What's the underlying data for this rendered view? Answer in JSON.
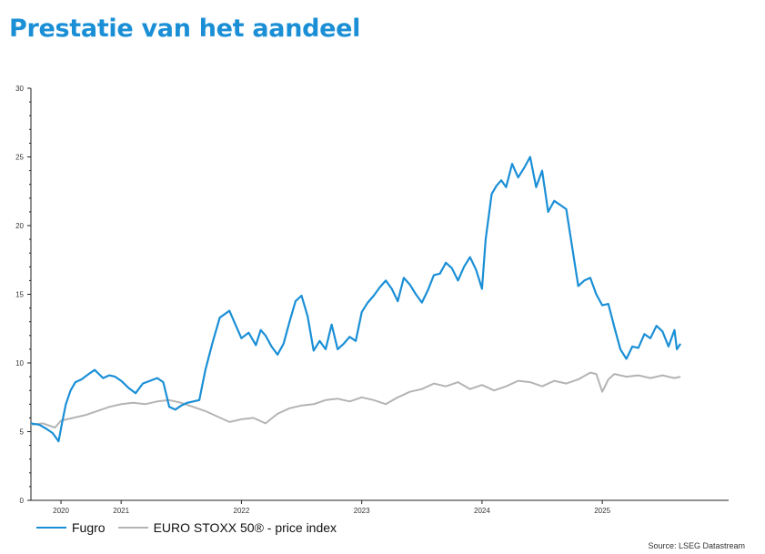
{
  "page": {
    "title": "Prestatie van het aandeel"
  },
  "source": "Source: LSEG Datastream",
  "chart_data": {
    "type": "line",
    "title": "Prestatie van het aandeel",
    "xlabel": "",
    "ylabel": "",
    "xlim": [
      2019.85,
      2025.65
    ],
    "ylim": [
      0,
      30
    ],
    "yticks": [
      0,
      5,
      10,
      15,
      20,
      25,
      30
    ],
    "xticks": [
      {
        "label": "2020",
        "pos": 2020.1
      },
      {
        "label": "2021",
        "pos": 2020.6
      },
      {
        "label": "2022",
        "pos": 2021.6
      },
      {
        "label": "2023",
        "pos": 2022.6
      },
      {
        "label": "2024",
        "pos": 2023.6
      },
      {
        "label": "2025",
        "pos": 2024.6
      }
    ],
    "year_labels": [
      {
        "label": "2020",
        "pos": 2020.1
      },
      {
        "label": "2021",
        "pos": 2020.6
      },
      {
        "label": "2022",
        "pos": 2021.6
      },
      {
        "label": "2023",
        "pos": 2022.6
      },
      {
        "label": "2024",
        "pos": 2023.6
      },
      {
        "label": "2025",
        "pos": 2024.6
      }
    ],
    "grid": false,
    "legend_position": "bottom-left",
    "series": [
      {
        "name": "Fugro",
        "color": "#1a8fd6",
        "x": [
          2019.85,
          2019.92,
          2019.98,
          2020.03,
          2020.08,
          2020.11,
          2020.14,
          2020.18,
          2020.22,
          2020.27,
          2020.33,
          2020.38,
          2020.45,
          2020.5,
          2020.55,
          2020.6,
          2020.66,
          2020.72,
          2020.78,
          2020.84,
          2020.9,
          2020.95,
          2021.0,
          2021.05,
          2021.1,
          2021.15,
          2021.2,
          2021.25,
          2021.3,
          2021.36,
          2021.42,
          2021.5,
          2021.56,
          2021.6,
          2021.66,
          2021.72,
          2021.76,
          2021.8,
          2021.85,
          2021.9,
          2021.95,
          2022.0,
          2022.05,
          2022.1,
          2022.15,
          2022.2,
          2022.25,
          2022.3,
          2022.35,
          2022.4,
          2022.45,
          2022.5,
          2022.55,
          2022.6,
          2022.65,
          2022.7,
          2022.75,
          2022.8,
          2022.85,
          2022.9,
          2022.95,
          2023.0,
          2023.05,
          2023.1,
          2023.15,
          2023.2,
          2023.25,
          2023.3,
          2023.35,
          2023.4,
          2023.45,
          2023.5,
          2023.55,
          2023.6,
          2023.63,
          2023.68,
          2023.72,
          2023.76,
          2023.8,
          2023.85,
          2023.9,
          2023.95,
          2024.0,
          2024.05,
          2024.1,
          2024.15,
          2024.2,
          2024.3,
          2024.4,
          2024.45,
          2024.5,
          2024.55,
          2024.6,
          2024.65,
          2024.7,
          2024.75,
          2024.8,
          2024.85,
          2024.9,
          2024.95,
          2025.0,
          2025.05,
          2025.1,
          2025.15,
          2025.2,
          2025.22,
          2025.25
        ],
        "values": [
          5.6,
          5.5,
          5.2,
          4.9,
          4.3,
          5.7,
          7.0,
          8.0,
          8.6,
          8.8,
          9.2,
          9.5,
          8.9,
          9.1,
          9.0,
          8.7,
          8.2,
          7.8,
          8.5,
          8.7,
          8.9,
          8.6,
          6.8,
          6.6,
          6.9,
          7.1,
          7.2,
          7.3,
          9.5,
          11.5,
          13.3,
          13.8,
          12.6,
          11.8,
          12.2,
          11.3,
          12.4,
          12.0,
          11.2,
          10.6,
          11.4,
          13.0,
          14.5,
          14.9,
          13.4,
          10.9,
          11.6,
          11.0,
          12.8,
          11.0,
          11.4,
          11.9,
          11.6,
          13.7,
          14.4,
          14.9,
          15.5,
          16.0,
          15.4,
          14.5,
          16.2,
          15.7,
          15.0,
          14.4,
          15.3,
          16.4,
          16.5,
          17.3,
          16.9,
          16.0,
          17.0,
          17.7,
          16.8,
          15.4,
          19.0,
          22.3,
          22.9,
          23.3,
          22.8,
          24.5,
          23.5,
          24.2,
          25.0,
          22.8,
          24.0,
          21.0,
          21.8,
          21.2,
          15.6,
          16.0,
          16.2,
          15.0,
          14.2,
          14.3,
          12.6,
          11.0,
          10.3,
          11.2,
          11.1,
          12.1,
          11.8,
          12.7,
          12.3,
          11.2,
          12.4,
          11.0,
          11.4
        ]
      },
      {
        "name": "EURO STOXX 50® - price index",
        "color": "#b4b4b4",
        "x": [
          2019.85,
          2019.95,
          2020.05,
          2020.1,
          2020.2,
          2020.3,
          2020.4,
          2020.5,
          2020.6,
          2020.7,
          2020.8,
          2020.9,
          2021.0,
          2021.1,
          2021.2,
          2021.3,
          2021.4,
          2021.5,
          2021.6,
          2021.7,
          2021.8,
          2021.9,
          2022.0,
          2022.1,
          2022.2,
          2022.3,
          2022.4,
          2022.5,
          2022.6,
          2022.7,
          2022.8,
          2022.9,
          2023.0,
          2023.1,
          2023.2,
          2023.3,
          2023.4,
          2023.5,
          2023.6,
          2023.7,
          2023.8,
          2023.9,
          2024.0,
          2024.1,
          2024.2,
          2024.3,
          2024.4,
          2024.5,
          2024.55,
          2024.6,
          2024.65,
          2024.7,
          2024.8,
          2024.9,
          2025.0,
          2025.1,
          2025.2,
          2025.25
        ],
        "values": [
          5.5,
          5.6,
          5.3,
          5.8,
          6.0,
          6.2,
          6.5,
          6.8,
          7.0,
          7.1,
          7.0,
          7.2,
          7.3,
          7.1,
          6.8,
          6.5,
          6.1,
          5.7,
          5.9,
          6.0,
          5.6,
          6.3,
          6.7,
          6.9,
          7.0,
          7.3,
          7.4,
          7.2,
          7.5,
          7.3,
          7.0,
          7.5,
          7.9,
          8.1,
          8.5,
          8.3,
          8.6,
          8.1,
          8.4,
          8.0,
          8.3,
          8.7,
          8.6,
          8.3,
          8.7,
          8.5,
          8.8,
          9.3,
          9.2,
          7.9,
          8.8,
          9.2,
          9.0,
          9.1,
          8.9,
          9.1,
          8.9,
          9.0
        ]
      }
    ]
  }
}
